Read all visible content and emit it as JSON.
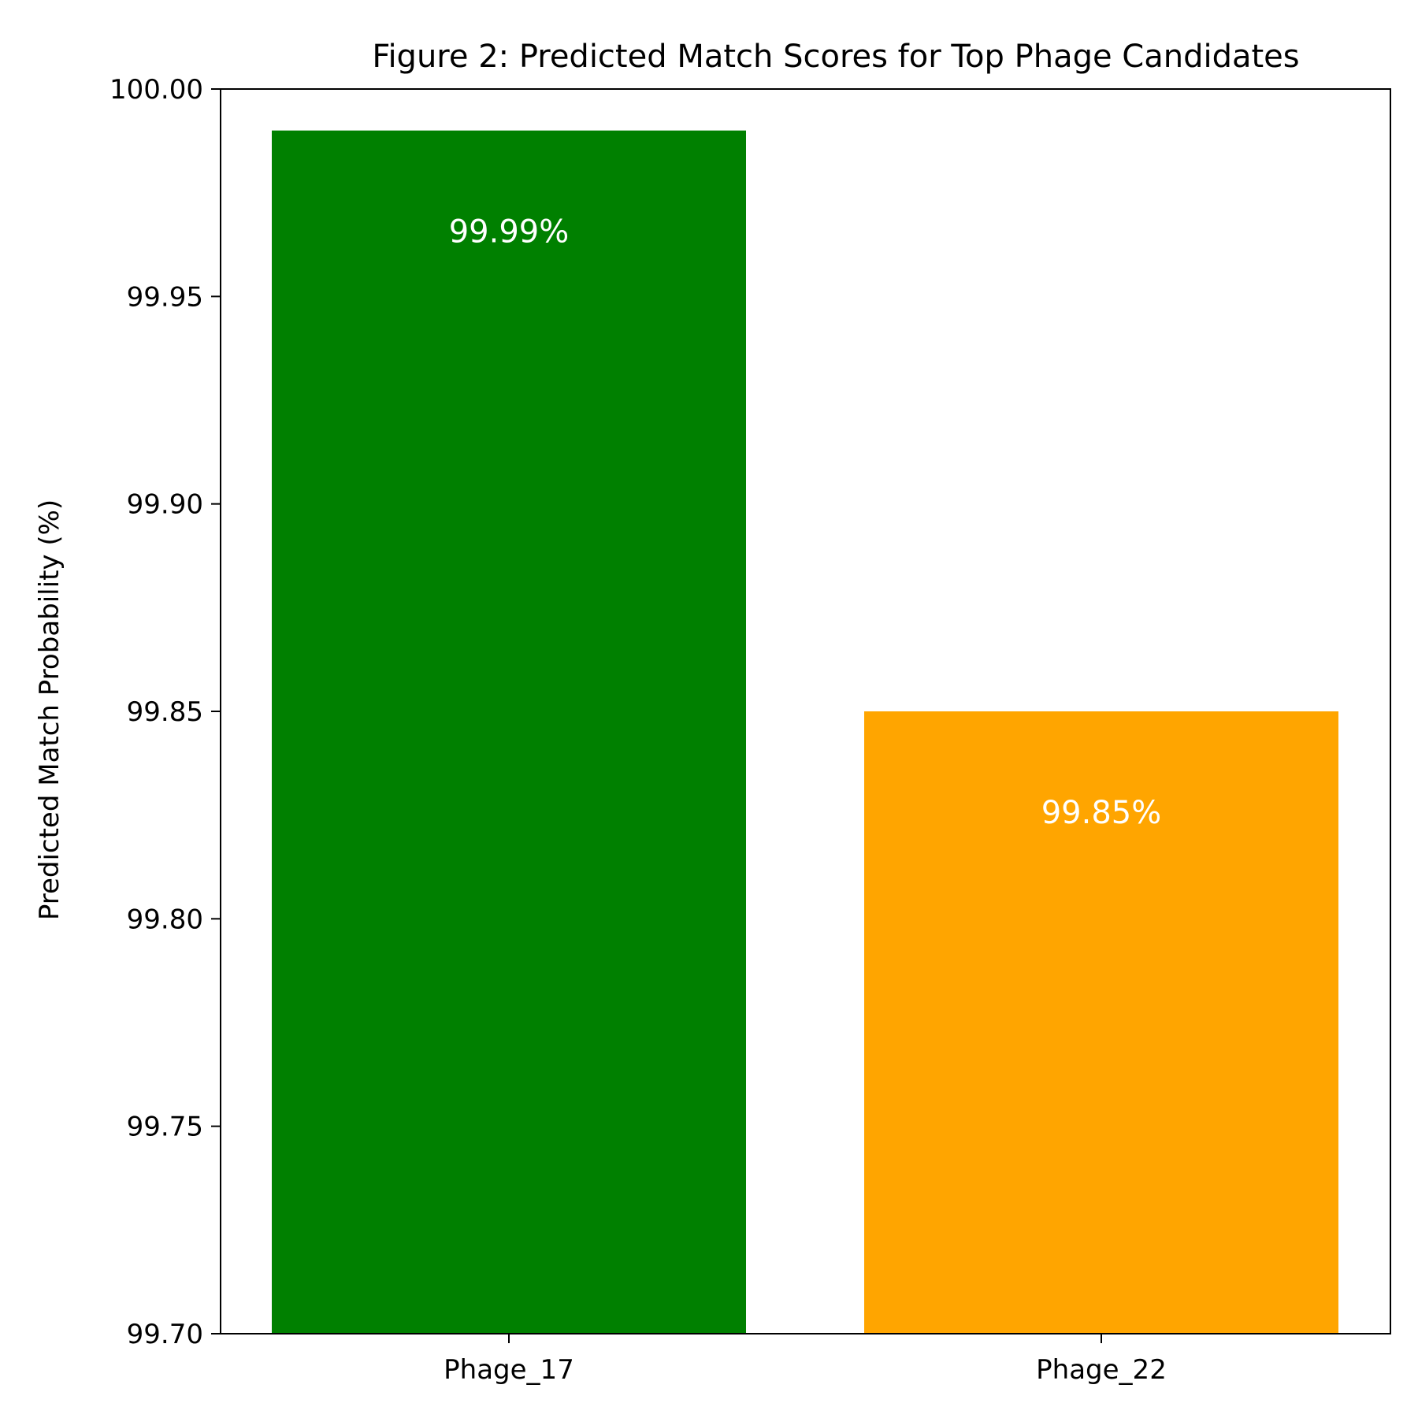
{
  "chart_data": {
    "type": "bar",
    "title": "Figure 2: Predicted Match Scores for Top Phage Candidates",
    "xlabel": "",
    "ylabel": "Predicted Match Probability (%)",
    "categories": [
      "Phage_17",
      "Phage_22"
    ],
    "values": [
      99.99,
      99.85
    ],
    "colors": [
      "#008000",
      "#ffa500"
    ],
    "data_labels": [
      "99.99%",
      "99.85%"
    ],
    "ylim": [
      99.7,
      100.0
    ],
    "yticks": [
      99.7,
      99.75,
      99.8,
      99.85,
      99.9,
      99.95,
      100.0
    ],
    "ytick_labels": [
      "99.70",
      "99.75",
      "99.80",
      "99.85",
      "99.90",
      "99.95",
      "100.00"
    ],
    "grid": false,
    "legend": "none"
  }
}
